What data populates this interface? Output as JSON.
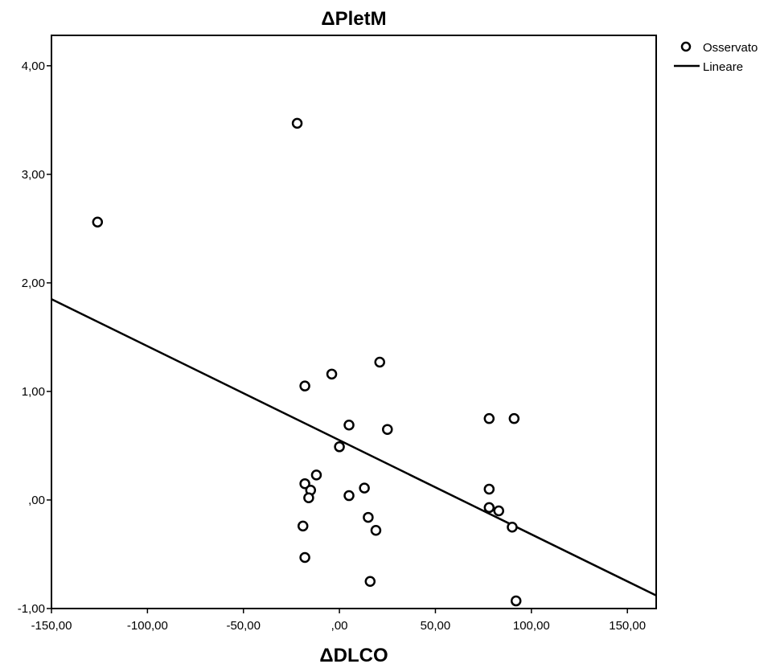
{
  "chart_data": {
    "type": "scatter",
    "title": "ΔPletM",
    "xlabel": "ΔDLCO",
    "ylabel": "",
    "xlim": [
      -150,
      165
    ],
    "ylim": [
      -1,
      4.28
    ],
    "x_ticks": [
      -150,
      -100,
      -50,
      0,
      50,
      100,
      150
    ],
    "x_tick_labels": [
      "-150,00",
      "-100,00",
      "-50,00",
      ",00",
      "50,00",
      "100,00",
      "150,00"
    ],
    "y_ticks": [
      -1,
      0,
      1,
      2,
      3,
      4
    ],
    "y_tick_labels": [
      "-1,00",
      ",00",
      "1,00",
      "2,00",
      "3,00",
      "4,00"
    ],
    "grid": false,
    "legend_position": "right-top-outside",
    "series": [
      {
        "name": "Osservato",
        "marker": "open-circle",
        "color": "#000000",
        "x": [
          -126,
          -22,
          -18,
          -4,
          21,
          5,
          25,
          0,
          -18,
          -12,
          -15,
          -16,
          5,
          13,
          -19,
          15,
          19,
          -18,
          16,
          78,
          91,
          78,
          78,
          83,
          90,
          92
        ],
        "y": [
          2.56,
          3.47,
          1.05,
          1.16,
          1.27,
          0.69,
          0.65,
          0.49,
          0.15,
          0.23,
          0.09,
          0.02,
          0.04,
          0.11,
          -0.24,
          -0.16,
          -0.28,
          -0.53,
          -0.75,
          0.75,
          0.75,
          0.1,
          -0.07,
          -0.1,
          -0.25,
          -0.93
        ]
      },
      {
        "name": "Lineare",
        "type": "line",
        "color": "#000000",
        "x": [
          -150,
          165
        ],
        "y": [
          1.85,
          -0.88
        ]
      }
    ]
  }
}
